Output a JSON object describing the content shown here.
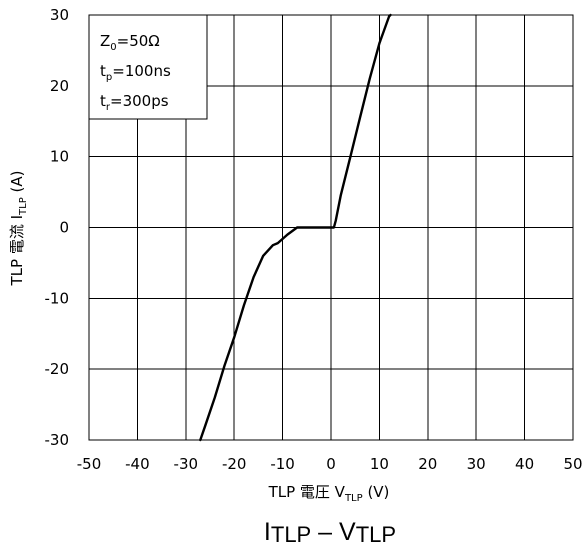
{
  "chart_data": {
    "type": "line",
    "title": "",
    "caption": {
      "main": "I",
      "sub": "TLP",
      "dash": " – ",
      "main2": "V",
      "sub2": "TLP"
    },
    "xlabel": {
      "pre": "TLP 電圧 V",
      "sub": "TLP",
      "post": " (V)"
    },
    "ylabel": {
      "pre": "TLP 電流 I",
      "sub": "TLP",
      "post": " (A)"
    },
    "xlim": [
      -50,
      50
    ],
    "ylim": [
      -30,
      30
    ],
    "xticks": [
      -50,
      -40,
      -30,
      -20,
      -10,
      0,
      10,
      20,
      30,
      40,
      50
    ],
    "yticks": [
      -30,
      -20,
      -10,
      0,
      10,
      20,
      30
    ],
    "grid": true,
    "legend_box": {
      "position": "top-left",
      "lines": [
        {
          "main": "Z",
          "sub": "0",
          "rest": "=50Ω"
        },
        {
          "main": "t",
          "sub": "p",
          "rest": "=100ns"
        },
        {
          "main": "t",
          "sub": "r",
          "rest": "=300ps"
        }
      ]
    },
    "series": [
      {
        "color": "#000000",
        "x": [
          -27.0,
          -26.0,
          -24.0,
          -22.0,
          -20.0,
          -18.0,
          -16.0,
          -14.0,
          -12.0,
          -11.0,
          -9.0,
          -7.0,
          -5.0,
          -3.0,
          -1.0,
          0.6,
          1.0,
          2.0,
          4.0,
          6.0,
          8.0,
          10.0,
          12.0,
          12.3
        ],
        "y": [
          -30.0,
          -28.0,
          -24.0,
          -19.5,
          -15.5,
          -11.0,
          -7.0,
          -4.0,
          -2.5,
          -2.2,
          -1.0,
          0.0,
          0.0,
          0.0,
          0.0,
          0.0,
          1.0,
          4.5,
          10.0,
          15.5,
          21.0,
          26.0,
          29.8,
          30.0
        ]
      }
    ]
  }
}
